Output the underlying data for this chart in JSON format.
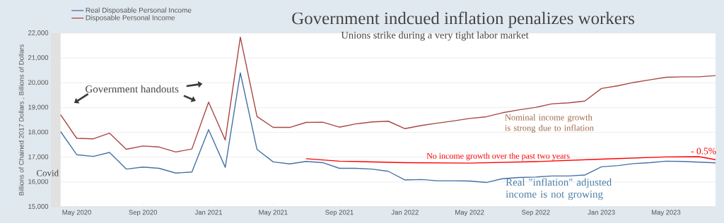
{
  "chart_data": {
    "type": "line",
    "title": "Government indcued inflation penalizes workers",
    "subtitle": "Unions strike during a very tight labor market",
    "ylabel": "Billions of Chained 2017 Dollars , Billions of Dollars",
    "x": [
      "2020-04",
      "2020-05",
      "2020-06",
      "2020-07",
      "2020-08",
      "2020-09",
      "2020-10",
      "2020-11",
      "2020-12",
      "2021-01",
      "2021-02",
      "2021-03",
      "2021-04",
      "2021-05",
      "2021-06",
      "2021-07",
      "2021-08",
      "2021-09",
      "2021-10",
      "2021-11",
      "2021-12",
      "2022-01",
      "2022-02",
      "2022-03",
      "2022-04",
      "2022-05",
      "2022-06",
      "2022-07",
      "2022-08",
      "2022-09",
      "2022-10",
      "2022-11",
      "2022-12",
      "2023-01",
      "2023-02",
      "2023-03",
      "2023-04",
      "2023-05",
      "2023-06",
      "2023-07",
      "2023-08"
    ],
    "series": [
      {
        "name": "Real Disposable Personal Income",
        "color": "#4572a7",
        "values": [
          18030,
          17100,
          17030,
          17190,
          16520,
          16600,
          16550,
          16360,
          16400,
          18110,
          16590,
          20400,
          17310,
          16810,
          16730,
          16830,
          16780,
          16550,
          16550,
          16520,
          16430,
          16080,
          16100,
          16050,
          16050,
          16040,
          15980,
          16130,
          16180,
          16200,
          16240,
          16240,
          16280,
          16610,
          16660,
          16740,
          16780,
          16840,
          16830,
          16800,
          16770
        ]
      },
      {
        "name": "Disposable Personal Income",
        "color": "#aa4643",
        "values": [
          18710,
          17760,
          17740,
          17970,
          17320,
          17450,
          17410,
          17210,
          17330,
          19220,
          17690,
          21840,
          18640,
          18200,
          18200,
          18400,
          18410,
          18210,
          18340,
          18420,
          18450,
          18150,
          18280,
          18370,
          18460,
          18560,
          18630,
          18790,
          18910,
          19010,
          19150,
          19190,
          19260,
          19770,
          19880,
          20010,
          20120,
          20220,
          20240,
          20240,
          20290
        ]
      },
      {
        "type": "line",
        "color": "#ff0000",
        "x": [
          "2021-07",
          "2021-09",
          "2022-01",
          "2022-05",
          "2022-09",
          "2023-01",
          "2023-05",
          "2023-07",
          "2023-08"
        ],
        "values": [
          16940,
          16840,
          16780,
          16760,
          16820,
          16920,
          17010,
          17020,
          16900
        ]
      }
    ],
    "xlim": [
      "2020-03-14",
      "2023-08-01"
    ],
    "ylim": [
      15000,
      22000
    ],
    "xticks": [
      {
        "value": "2020-05",
        "label": "May 2020"
      },
      {
        "value": "2020-09",
        "label": "Sep 2020"
      },
      {
        "value": "2021-01",
        "label": "Jan 2021"
      },
      {
        "value": "2021-05",
        "label": "May 2021"
      },
      {
        "value": "2021-09",
        "label": "Sep 2021"
      },
      {
        "value": "2022-01",
        "label": "Jan 2022"
      },
      {
        "value": "2022-05",
        "label": "May 2022"
      },
      {
        "value": "2022-09",
        "label": "Sep 2022"
      },
      {
        "value": "2023-01",
        "label": "Jan 2023"
      },
      {
        "value": "2023-05",
        "label": "May 2023"
      }
    ],
    "yticks": [
      {
        "value": 15000,
        "label": "15,000"
      },
      {
        "value": 16000,
        "label": "16,000"
      },
      {
        "value": 17000,
        "label": "17,000"
      },
      {
        "value": 18000,
        "label": "18,000"
      },
      {
        "value": 19000,
        "label": "19,000"
      },
      {
        "value": 20000,
        "label": "20,000"
      },
      {
        "value": 21000,
        "label": "21,000"
      },
      {
        "value": 22000,
        "label": "22,000"
      }
    ],
    "bands": [
      {
        "axis": "x",
        "from": "2020-02",
        "to": "2020-04",
        "label": "Covid",
        "color": "#e1e1e1"
      }
    ],
    "annotations": [
      "Government handouts",
      "No income growth over the past two years",
      "- 0.5%",
      "Nominal income growth is strong due to inflation",
      "Real \"inflation\" adjusted income is not growing"
    ],
    "grid": "y",
    "legend": "top left",
    "line_style": "solid",
    "marker": "none"
  }
}
